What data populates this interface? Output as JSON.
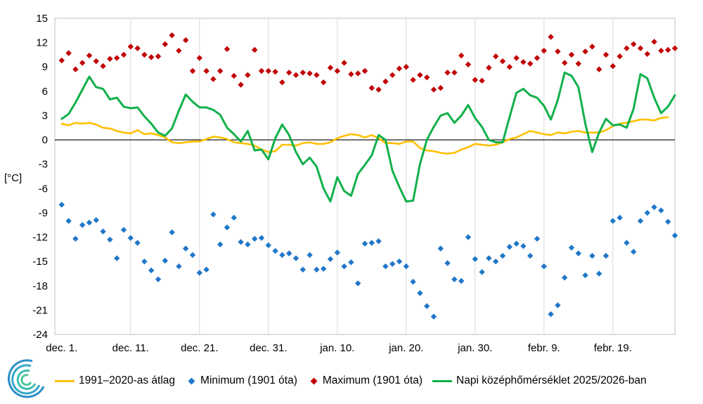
{
  "chart_data": {
    "type": "line",
    "title": "",
    "xlabel": "",
    "ylabel": "[°C]",
    "ylim": [
      -24,
      15
    ],
    "yticks": [
      15,
      12,
      9,
      6,
      3,
      0,
      -3,
      -6,
      -9,
      -12,
      -15,
      -18,
      -21,
      -24
    ],
    "x_tick_labels": [
      {
        "day": 0,
        "label": "dec. 1."
      },
      {
        "day": 10,
        "label": "dec. 11."
      },
      {
        "day": 20,
        "label": "dec. 21."
      },
      {
        "day": 30,
        "label": "dec. 31."
      },
      {
        "day": 40,
        "label": "jan. 10."
      },
      {
        "day": 50,
        "label": "jan. 20."
      },
      {
        "day": 60,
        "label": "jan. 30."
      },
      {
        "day": 70,
        "label": "febr. 9."
      },
      {
        "day": 80,
        "label": "febr. 19."
      }
    ],
    "x_range": [
      0,
      88
    ],
    "series": [
      {
        "name": "1991–2020-as átlag",
        "kind": "line",
        "color": "#FFC000",
        "values": [
          2.0,
          1.8,
          2.1,
          2.0,
          2.1,
          1.9,
          1.5,
          1.4,
          1.1,
          0.9,
          0.8,
          1.2,
          0.7,
          0.8,
          0.6,
          0.3,
          -0.3,
          -0.4,
          -0.3,
          -0.2,
          -0.2,
          0.1,
          0.4,
          0.3,
          0.1,
          -0.3,
          -0.4,
          -0.5,
          -0.7,
          -1.2,
          -1.5,
          -1.4,
          -0.6,
          -0.6,
          -0.7,
          -0.4,
          -0.3,
          -0.5,
          -0.5,
          -0.3,
          0.2,
          0.5,
          0.7,
          0.6,
          0.3,
          0.6,
          0.2,
          -0.4,
          -0.4,
          -0.5,
          -0.2,
          -0.2,
          -1.0,
          -1.3,
          -1.4,
          -1.6,
          -1.7,
          -1.6,
          -1.2,
          -0.9,
          -0.5,
          -0.6,
          -0.7,
          -0.6,
          -0.3,
          0.1,
          0.3,
          0.7,
          1.1,
          0.9,
          0.7,
          0.6,
          0.9,
          0.8,
          1.0,
          1.1,
          0.9,
          0.9,
          0.9,
          1.2,
          1.7,
          2.0,
          2.1,
          2.3,
          2.5,
          2.5,
          2.4,
          2.7,
          2.8
        ]
      },
      {
        "name": "Minimum (1901 óta)",
        "kind": "scatter",
        "color": "#1F77C9",
        "values": [
          -8.0,
          -10.0,
          -12.2,
          -10.5,
          -10.2,
          -9.9,
          -11.3,
          -12.3,
          -14.6,
          -11.1,
          -12.1,
          -12.7,
          -15.0,
          -16.1,
          -17.2,
          -14.9,
          -11.4,
          -15.6,
          -13.4,
          -14.2,
          -16.4,
          -16.0,
          -9.2,
          -12.9,
          -10.8,
          -9.6,
          -12.6,
          -12.9,
          -12.2,
          -12.1,
          -13.0,
          -13.7,
          -14.2,
          -14.0,
          -14.6,
          -16.0,
          -14.2,
          -16.0,
          -15.9,
          -14.7,
          -13.9,
          -15.6,
          -15.1,
          -17.7,
          -12.8,
          -12.7,
          -12.5,
          -15.6,
          -15.3,
          -15.0,
          -15.6,
          -17.5,
          -18.9,
          -20.5,
          -21.8,
          -13.4,
          -15.2,
          -17.2,
          -17.4,
          -12.0,
          -14.7,
          -16.3,
          -14.6,
          -15.0,
          -14.3,
          -13.2,
          -12.8,
          -13.1,
          -14.3,
          -12.2,
          -15.6,
          -21.5,
          -20.4,
          -17.0,
          -13.3,
          -14.0,
          -16.7,
          -14.3,
          -16.5,
          -14.3,
          -10.0,
          -9.6,
          -12.7,
          -13.8,
          -10.0,
          -9.0,
          -8.3,
          -8.7,
          -10.1,
          -11.8
        ]
      },
      {
        "name": "Maximum (1901 óta)",
        "kind": "scatter",
        "color": "#C00000",
        "values": [
          9.8,
          10.7,
          8.7,
          9.5,
          10.4,
          9.7,
          9.1,
          10.0,
          10.1,
          10.5,
          11.5,
          11.3,
          10.5,
          10.2,
          10.3,
          11.8,
          12.9,
          11.0,
          12.3,
          8.5,
          10.1,
          8.5,
          7.5,
          8.5,
          11.2,
          7.9,
          6.8,
          8.0,
          11.1,
          8.5,
          8.5,
          8.4,
          7.1,
          8.3,
          8.0,
          8.3,
          8.2,
          8.0,
          7.1,
          8.9,
          8.5,
          9.5,
          8.1,
          8.2,
          8.5,
          6.4,
          6.2,
          7.2,
          8.0,
          8.8,
          9.0,
          7.4,
          8.0,
          7.7,
          6.2,
          6.4,
          8.3,
          8.3,
          10.4,
          9.3,
          7.4,
          7.3,
          8.9,
          10.3,
          9.7,
          9.0,
          10.1,
          9.6,
          9.4,
          10.1,
          11.0,
          12.7,
          10.9,
          9.5,
          10.5,
          9.4,
          10.9,
          11.5,
          8.7,
          10.5,
          9.1,
          10.3,
          11.3,
          11.8,
          11.3,
          10.6,
          12.1,
          11.0,
          11.1,
          11.3
        ]
      },
      {
        "name": "Napi középhőmérséklet 2025/2026-ban",
        "kind": "line",
        "color": "#12B04A",
        "values": [
          2.6,
          3.2,
          4.6,
          6.2,
          7.8,
          6.5,
          6.3,
          5.0,
          5.2,
          4.1,
          3.9,
          4.0,
          2.9,
          2.0,
          0.9,
          0.5,
          1.4,
          3.6,
          5.6,
          4.7,
          4.0,
          4.0,
          3.7,
          3.1,
          1.5,
          0.7,
          -0.2,
          1.1,
          -1.3,
          -1.2,
          -2.4,
          0.2,
          1.9,
          0.6,
          -1.5,
          -3.0,
          -2.2,
          -3.3,
          -6.0,
          -7.6,
          -4.6,
          -6.3,
          -6.9,
          -4.2,
          -3.1,
          -1.9,
          0.6,
          0.0,
          -3.8,
          -5.8,
          -7.6,
          -7.5,
          -3.0,
          0.0,
          1.6,
          3.0,
          3.3,
          2.1,
          3.0,
          4.3,
          2.7,
          1.6,
          0.0,
          -0.3,
          -0.3,
          2.8,
          5.8,
          6.3,
          5.5,
          5.2,
          4.2,
          2.5,
          4.9,
          8.3,
          7.9,
          6.5,
          2.0,
          -1.5,
          0.9,
          2.6,
          1.8,
          1.9,
          1.5,
          3.8,
          8.1,
          7.6,
          5.2,
          3.3,
          4.1,
          5.5
        ]
      }
    ],
    "legend": [
      {
        "label": "1991–2020-as átlag",
        "kind": "line",
        "color": "#FFC000"
      },
      {
        "label": "Minimum (1901 óta)",
        "kind": "diamond",
        "color": "#1F77C9"
      },
      {
        "label": "Maximum (1901 óta)",
        "kind": "diamond",
        "color": "#C00000"
      },
      {
        "label": "Napi középhőmérséklet 2025/2026-ban",
        "kind": "line",
        "color": "#12B04A"
      }
    ],
    "legend_position": "bottom",
    "grid": {
      "vertical": true,
      "horizontal": false,
      "zero_line": true
    }
  }
}
